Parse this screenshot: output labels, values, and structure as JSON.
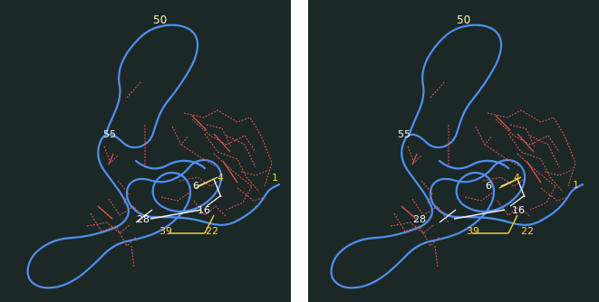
{
  "stereo_pair": {
    "labels": {
      "top": "50",
      "left": "55",
      "mid_left": "28",
      "mid": "39",
      "mid_right": "22",
      "inner_a": "6",
      "inner_b": "4",
      "inner_c": "16",
      "end": "1"
    },
    "colors": {
      "background": "#1c2826",
      "backbone": "#4f8ff0",
      "sidechains": "#e8535a",
      "labels_top": "#f4f2b0",
      "labels_white": "#f4f4f4",
      "labels_yellow": "#f2cf3a",
      "bonds": "#f1f1f1"
    }
  }
}
